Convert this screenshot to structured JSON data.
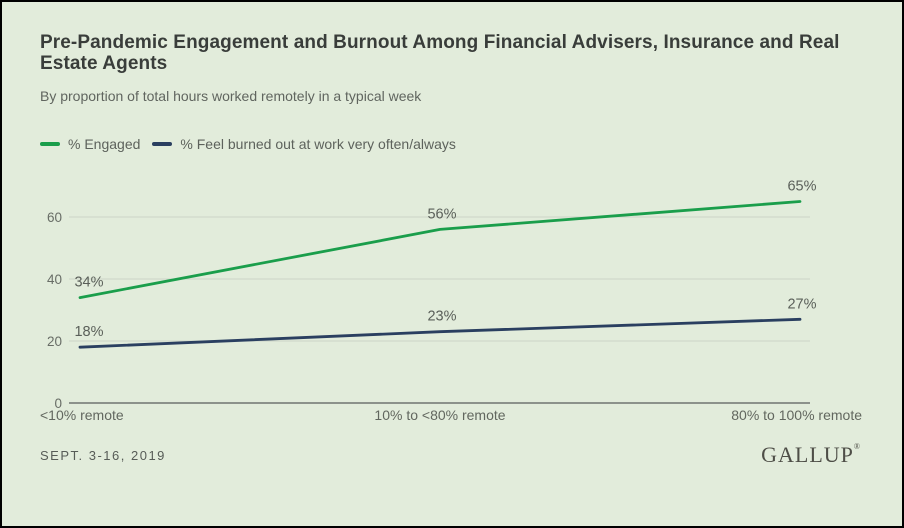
{
  "header": {
    "title": "Pre-Pandemic Engagement and Burnout Among Financial Advisers, Insurance and Real Estate Agents",
    "subtitle": "By proportion of total hours worked remotely in a typical week"
  },
  "legend": {
    "items": [
      {
        "label": "% Engaged",
        "color": "#1a9e4b"
      },
      {
        "label": "% Feel burned out at work very often/always",
        "color": "#2a3f60"
      }
    ]
  },
  "chart_data": {
    "type": "line",
    "title": "Pre-Pandemic Engagement and Burnout Among Financial Advisers, Insurance and Real Estate Agents",
    "subtitle": "By proportion of total hours worked remotely in a typical week",
    "categories": [
      "<10% remote",
      "10% to <80% remote",
      "80% to 100% remote"
    ],
    "series": [
      {
        "name": "% Engaged",
        "color": "#1a9e4b",
        "values": [
          34,
          56,
          65
        ]
      },
      {
        "name": "% Feel burned out at work very often/always",
        "color": "#2a3f60",
        "values": [
          18,
          23,
          27
        ]
      }
    ],
    "xlabel": "",
    "ylabel": "",
    "y_ticks": [
      0,
      20,
      40,
      60
    ],
    "ylim": [
      0,
      70
    ],
    "grid": true,
    "legend_position": "top-left"
  },
  "footer": {
    "date": "SEPT. 3-16, 2019",
    "logo": "GALLUP",
    "logo_mark": "®"
  },
  "colors": {
    "background": "#e2ecdb",
    "engaged_green": "#1a9e4b",
    "burnout_navy": "#2a3f60",
    "gridline": "#ccd5c7",
    "axis_line": "#8c928b"
  }
}
